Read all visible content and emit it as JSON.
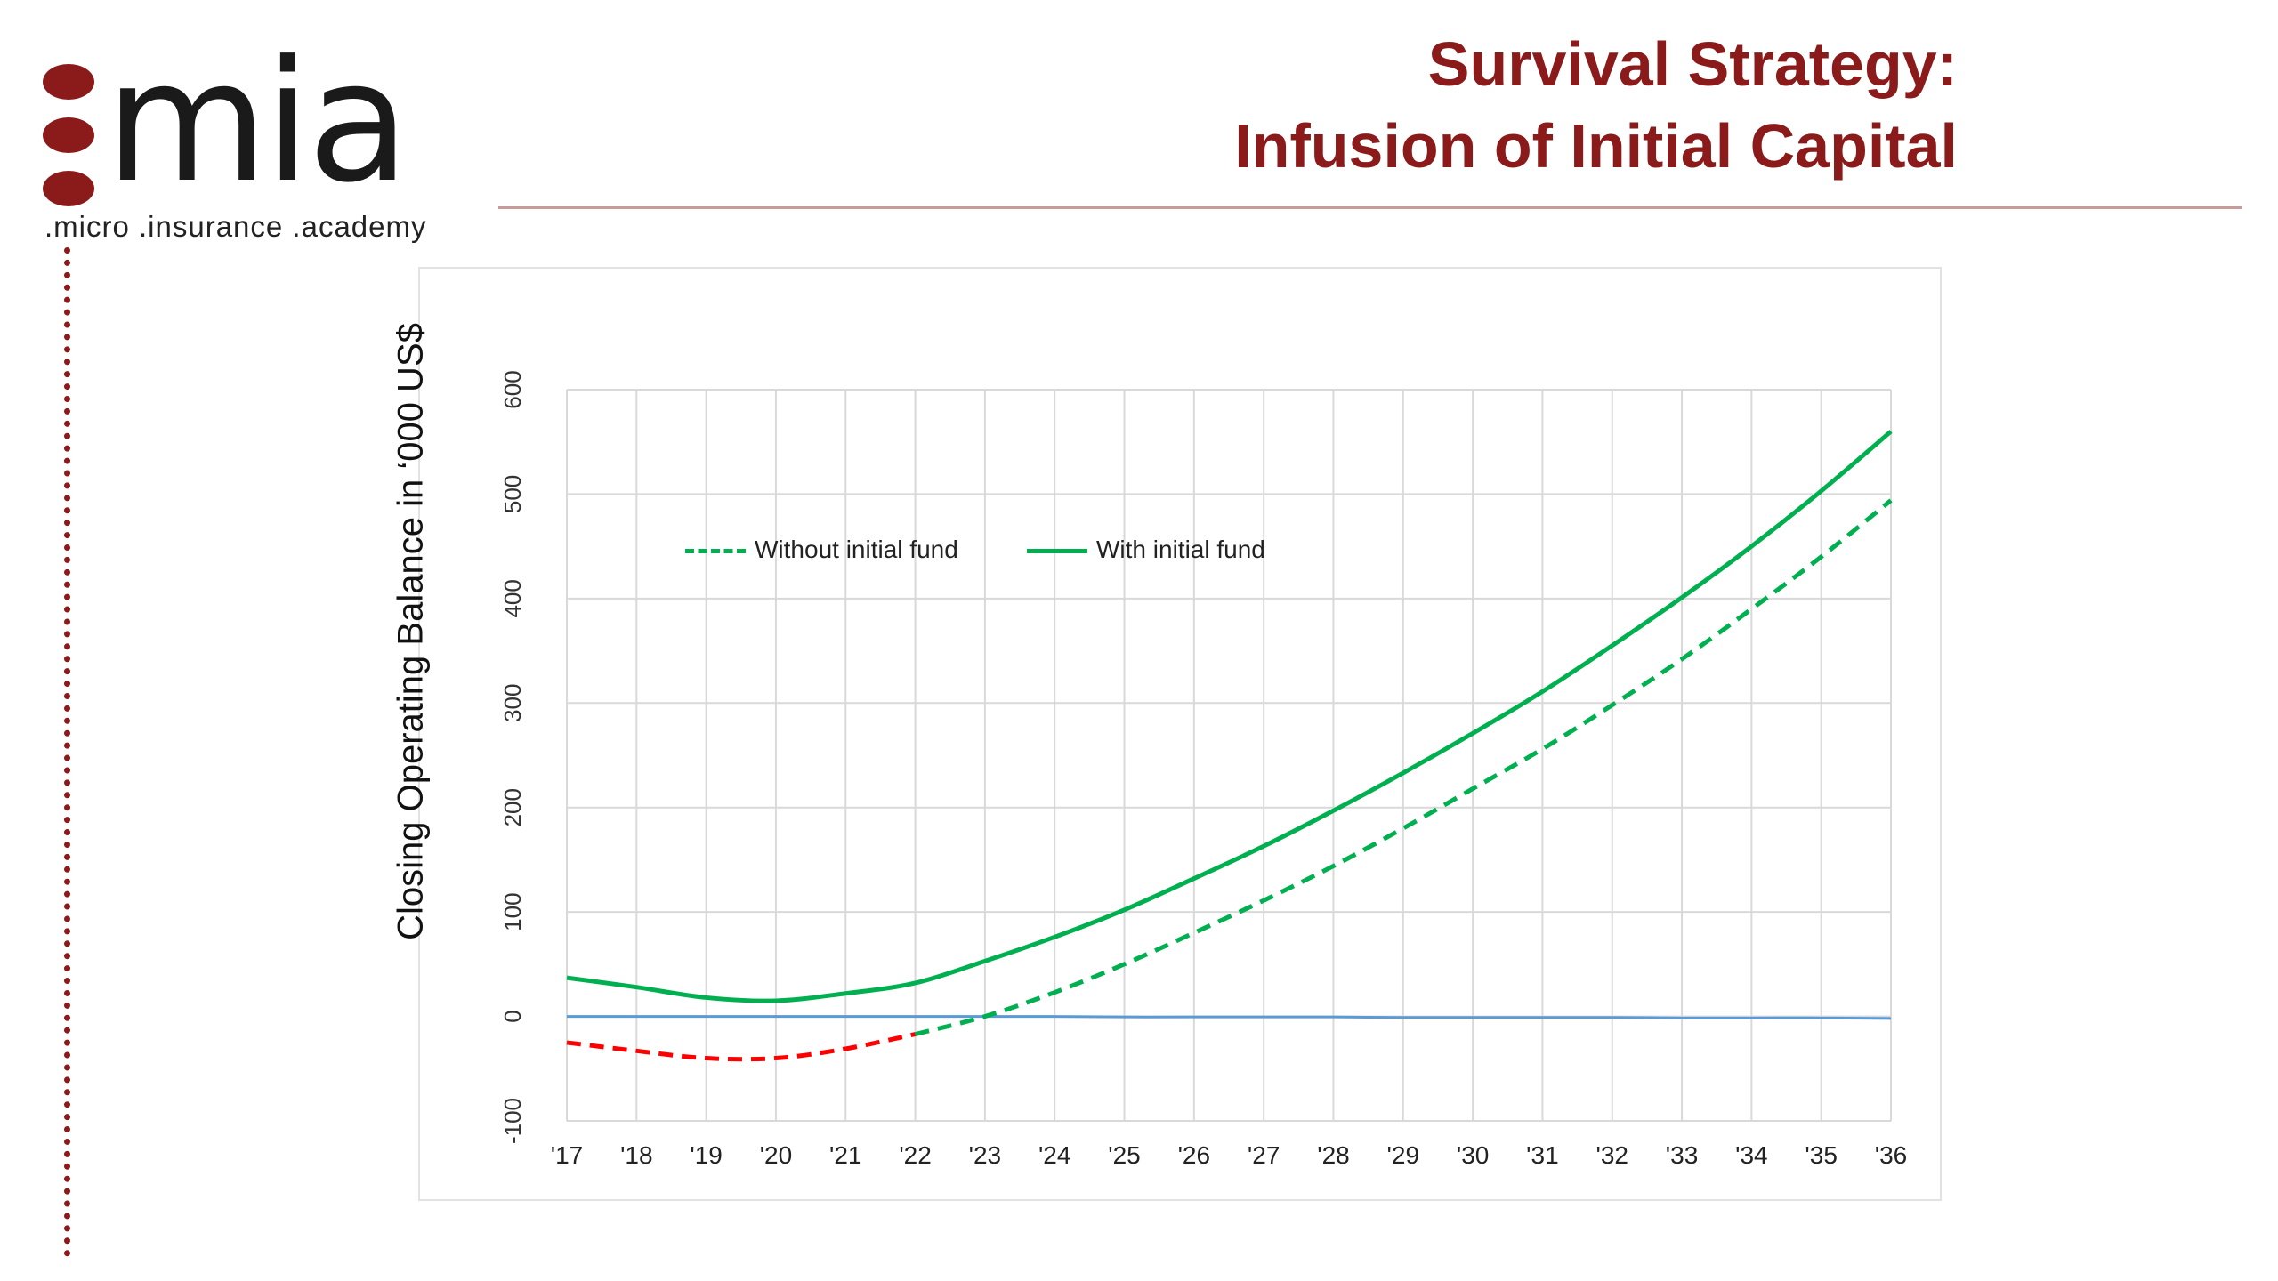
{
  "logo": {
    "wordmark": "mia",
    "tagline": ".micro .insurance .academy"
  },
  "title": {
    "line1": "Survival Strategy:",
    "line2": "Infusion of Initial Capital"
  },
  "colors": {
    "brand": "#8b1a1a",
    "with_fund": "#00b050",
    "without_fund_positive": "#00b050",
    "without_fund_negative": "#ff0000",
    "zero_line": "#5b9bd5",
    "grid": "#d9d9d9"
  },
  "chart_data": {
    "type": "line",
    "ylabel": "Closing Operating Balance in ‘000 US$",
    "xlabel": "",
    "categories": [
      "'17",
      "'18",
      "'19",
      "'20",
      "'21",
      "'22",
      "'23",
      "'24",
      "'25",
      "'26",
      "'27",
      "'28",
      "'29",
      "'30",
      "'31",
      "'32",
      "'33",
      "'34",
      "'35",
      "'36"
    ],
    "ylim": [
      -100,
      600
    ],
    "yticks": [
      -100,
      0,
      100,
      200,
      300,
      400,
      500,
      600
    ],
    "grid": true,
    "legend_position": "upper-left inside plot",
    "series": [
      {
        "name": "Without initial fund",
        "style": "dashed",
        "values": [
          -25,
          -33,
          -40,
          -40,
          -31,
          -17,
          0,
          23,
          50,
          80,
          111,
          144,
          180,
          218,
          256,
          298,
          342,
          390,
          440,
          494
        ]
      },
      {
        "name": "With initial fund",
        "style": "solid",
        "values": [
          37,
          28,
          18,
          15,
          22,
          32,
          53,
          76,
          102,
          132,
          163,
          197,
          233,
          271,
          311,
          355,
          401,
          450,
          503,
          560
        ]
      },
      {
        "name": "",
        "style": "zero-line",
        "values": [
          0,
          0,
          0,
          0,
          0,
          0,
          0,
          0,
          -0.5,
          -0.5,
          -0.5,
          -0.5,
          -1,
          -1,
          -1,
          -1,
          -1.5,
          -1.5,
          -1.5,
          -2
        ]
      }
    ]
  }
}
